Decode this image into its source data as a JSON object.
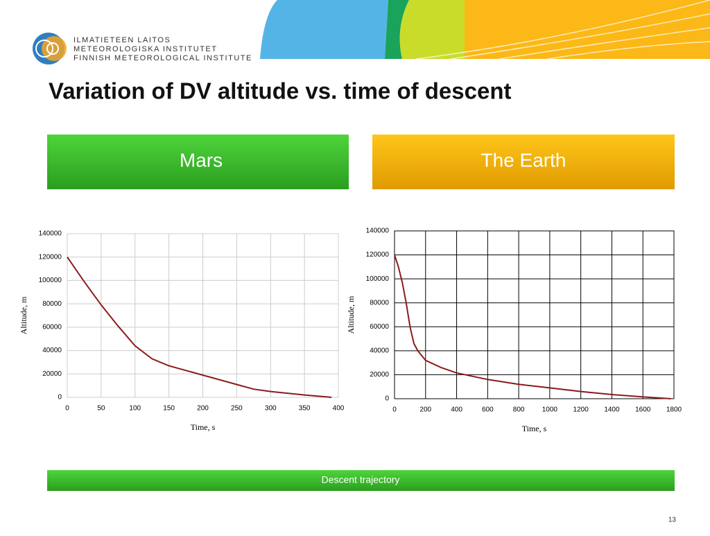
{
  "logo": {
    "lines": [
      "ILMATIETEEN LAITOS",
      "METEOROLOGISKA INSTITUTET",
      "FINNISH METEOROLOGICAL INSTITUTE"
    ]
  },
  "title": "Variation of DV altitude vs. time of descent",
  "panels": [
    "Mars",
    "The Earth"
  ],
  "footer": "Descent trajectory",
  "page_number": "13",
  "chart_data": [
    {
      "type": "line",
      "xlabel": "Time, s",
      "ylabel": "Altitude, m",
      "color": "#8b1a1a",
      "grid": true,
      "x": [
        0,
        25,
        50,
        75,
        100,
        125,
        150,
        200,
        250,
        275,
        300,
        350,
        390
      ],
      "values": [
        120000,
        99000,
        79000,
        61000,
        44000,
        33000,
        27000,
        19000,
        11000,
        7000,
        5000,
        2000,
        0
      ],
      "xlim": [
        0,
        400
      ],
      "xticks": [
        0,
        50,
        100,
        150,
        200,
        250,
        300,
        350,
        400
      ],
      "ylim": [
        0,
        140000
      ],
      "yticks": [
        0,
        20000,
        40000,
        60000,
        80000,
        100000,
        120000,
        140000
      ]
    },
    {
      "type": "line",
      "xlabel": "Time, s",
      "ylabel": "Altitude, m",
      "color": "#8b1a1a",
      "grid": true,
      "x": [
        0,
        25,
        50,
        75,
        100,
        125,
        150,
        200,
        300,
        400,
        600,
        800,
        1000,
        1200,
        1400,
        1600,
        1780
      ],
      "values": [
        120000,
        110000,
        97000,
        80000,
        60000,
        46000,
        40000,
        32000,
        26000,
        21500,
        16000,
        12000,
        9000,
        6000,
        3500,
        1500,
        0
      ],
      "xlim": [
        0,
        1800
      ],
      "xticks": [
        0,
        200,
        400,
        600,
        800,
        1000,
        1200,
        1400,
        1600,
        1800
      ],
      "ylim": [
        0,
        140000
      ],
      "yticks": [
        0,
        20000,
        40000,
        60000,
        80000,
        100000,
        120000,
        140000
      ]
    }
  ]
}
